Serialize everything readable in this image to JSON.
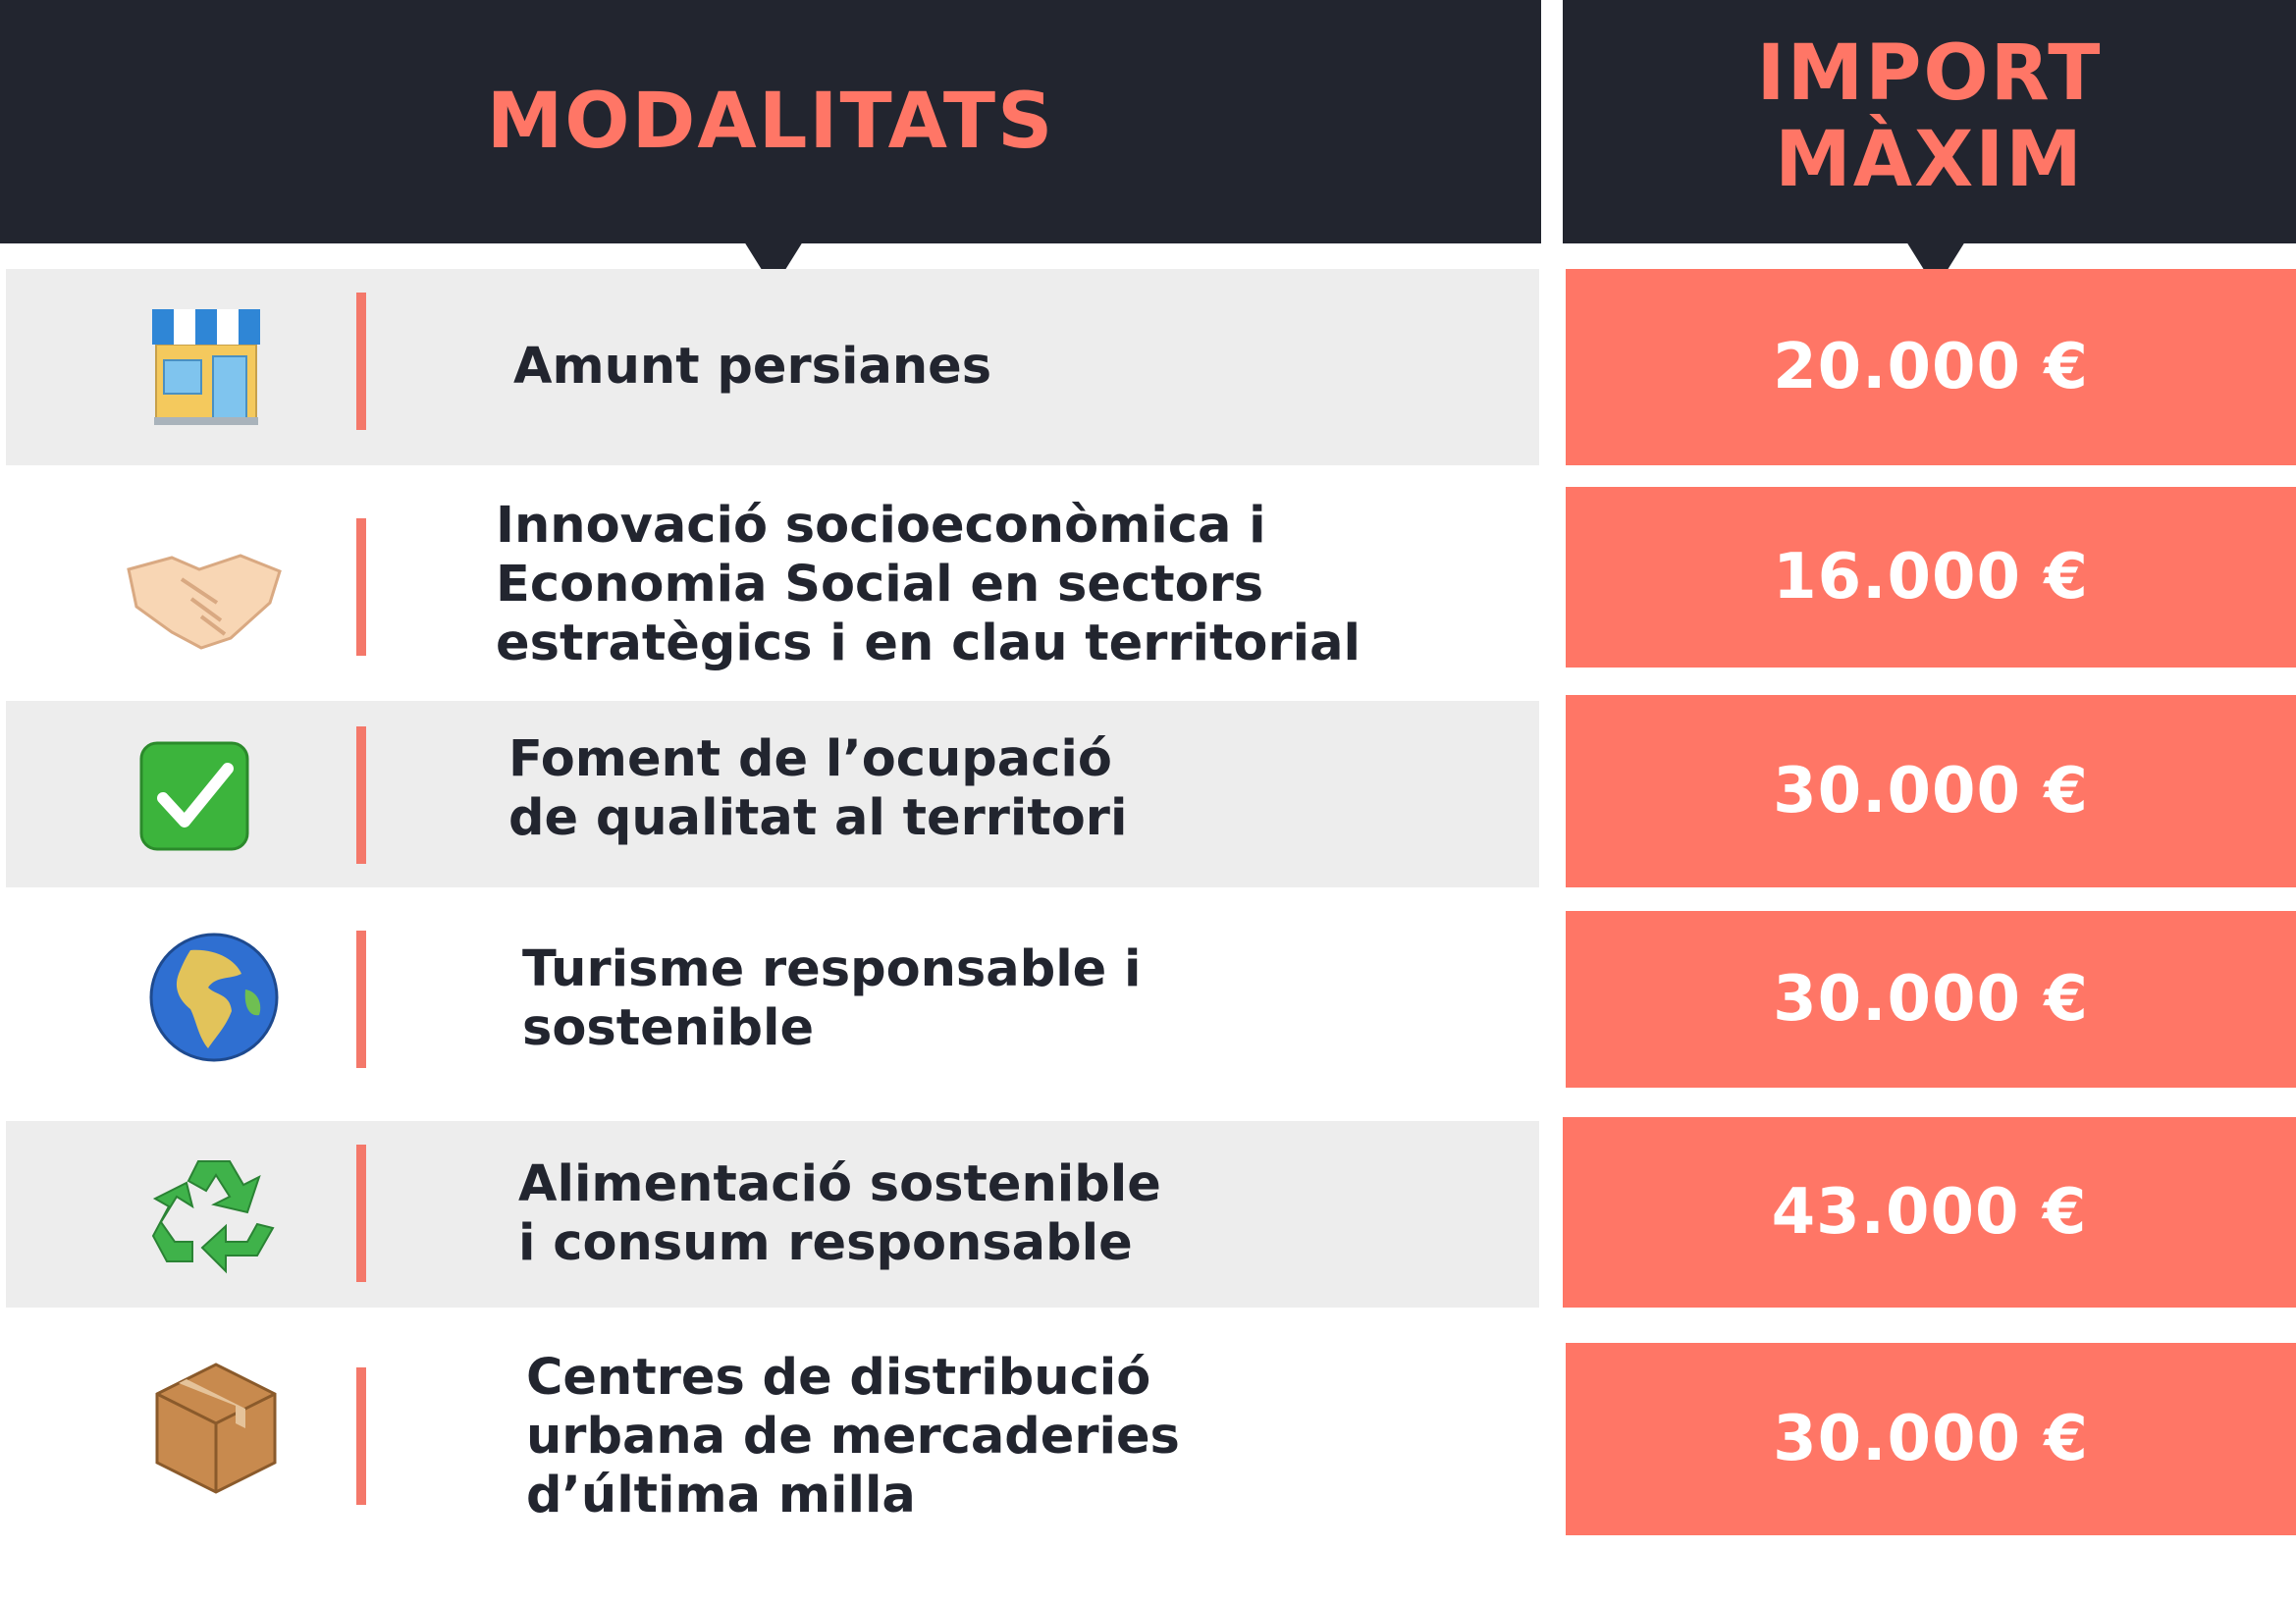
{
  "header": {
    "left_title": "MODALITATS",
    "right_title_line1": "IMPORT",
    "right_title_line2": "MÀXIM"
  },
  "colors": {
    "dark": "#22252f",
    "accent": "#ff7666",
    "row_gray": "#ededed"
  },
  "rows": [
    {
      "icon": "shop-icon",
      "label": "Amunt persianes",
      "amount": "20.000 €"
    },
    {
      "icon": "handshake-icon",
      "label": "Innovació socioeconòmica i\nEconomia Social en sectors\nestratègics i en clau territorial",
      "amount": "16.000 €"
    },
    {
      "icon": "check-mark-icon",
      "label": "Foment de l’ocupació\nde qualitat al territori",
      "amount": "30.000 €"
    },
    {
      "icon": "globe-icon",
      "label": "Turisme responsable i\nsostenible",
      "amount": "30.000 €"
    },
    {
      "icon": "recycle-icon",
      "label": "Alimentació sostenible\ni consum responsable",
      "amount": "43.000 €"
    },
    {
      "icon": "package-icon",
      "label": "Centres de distribució\nurbana de mercaderies\nd’última milla",
      "amount": "30.000 €"
    }
  ]
}
